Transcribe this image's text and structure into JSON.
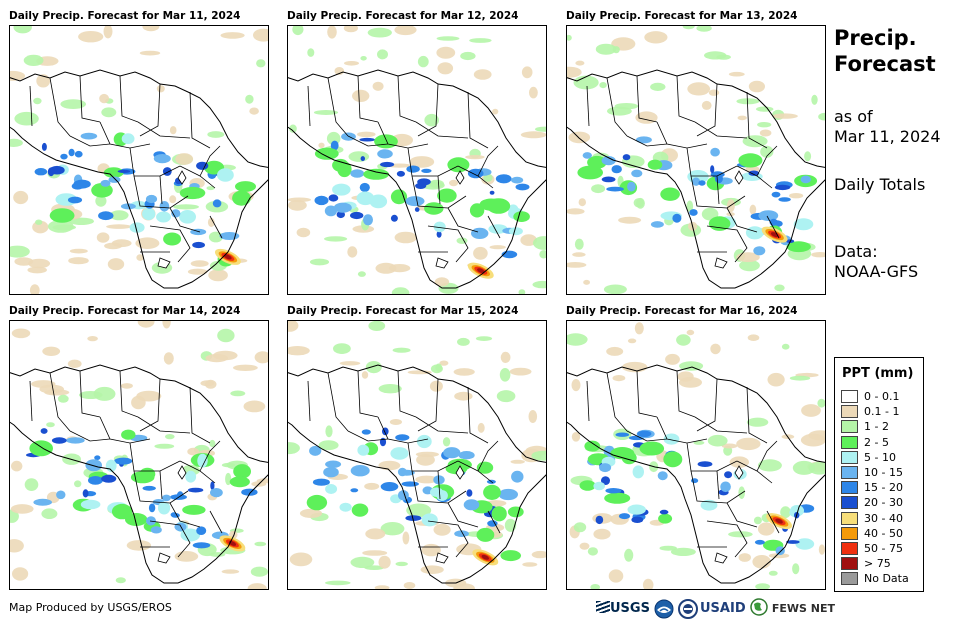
{
  "panels": [
    {
      "title": "Daily Precip. Forecast for Mar 11, 2024"
    },
    {
      "title": "Daily Precip. Forecast for Mar 12, 2024"
    },
    {
      "title": "Daily Precip. Forecast for Mar 13, 2024"
    },
    {
      "title": "Daily Precip. Forecast for Mar 14, 2024"
    },
    {
      "title": "Daily Precip. Forecast for Mar 15, 2024"
    },
    {
      "title": "Daily Precip. Forecast for Mar 16, 2024"
    }
  ],
  "sidebar": {
    "title_line1": "Precip.",
    "title_line2": "Forecast",
    "asof_line1": "as of",
    "asof_line2": "Mar 11, 2024",
    "totals": "Daily Totals",
    "data_line1": "Data:",
    "data_line2": "NOAA-GFS"
  },
  "legend": {
    "title": "PPT (mm)",
    "entries": [
      {
        "label": "0 - 0.1",
        "color": "#ffffff"
      },
      {
        "label": "0.1 - 1",
        "color": "#ecd9b8"
      },
      {
        "label": "1 - 2",
        "color": "#b5f5a8"
      },
      {
        "label": "2 - 5",
        "color": "#5ef05a"
      },
      {
        "label": "5 - 10",
        "color": "#aef2f2"
      },
      {
        "label": "10 - 15",
        "color": "#6ab4f0"
      },
      {
        "label": "15 - 20",
        "color": "#2e86e8"
      },
      {
        "label": "20 - 30",
        "color": "#1a4fd0"
      },
      {
        "label": "30 - 40",
        "color": "#f7de7a"
      },
      {
        "label": "40 - 50",
        "color": "#f59a0a"
      },
      {
        "label": "50 - 75",
        "color": "#ef3010"
      },
      {
        "label": "> 75",
        "color": "#a01010"
      },
      {
        "label": "No Data",
        "color": "#9a9a9a"
      }
    ]
  },
  "footer": {
    "credit": "Map Produced by USGS/EROS",
    "logo_usgs": "USGS",
    "logo_usaid": "USAID",
    "logo_fewsnet": "FEWS NET"
  }
}
